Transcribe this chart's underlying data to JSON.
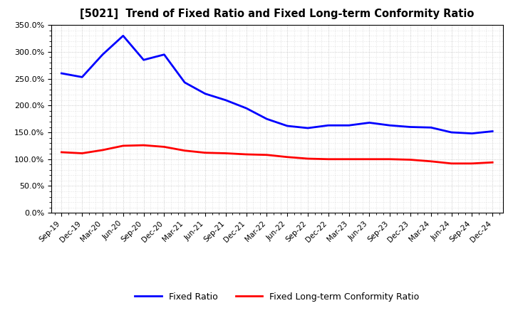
{
  "title": "[5021]  Trend of Fixed Ratio and Fixed Long-term Conformity Ratio",
  "x_labels": [
    "Sep-19",
    "Dec-19",
    "Mar-20",
    "Jun-20",
    "Sep-20",
    "Dec-20",
    "Mar-21",
    "Jun-21",
    "Sep-21",
    "Dec-21",
    "Mar-22",
    "Jun-22",
    "Sep-22",
    "Dec-22",
    "Mar-23",
    "Jun-23",
    "Sep-23",
    "Dec-23",
    "Mar-24",
    "Jun-24",
    "Sep-24",
    "Dec-24"
  ],
  "fixed_ratio": [
    260,
    253,
    295,
    330,
    285,
    295,
    243,
    222,
    210,
    195,
    175,
    162,
    158,
    163,
    163,
    168,
    163,
    160,
    159,
    150,
    148,
    152
  ],
  "fixed_lt_ratio": [
    113,
    111,
    117,
    125,
    126,
    123,
    116,
    112,
    111,
    109,
    108,
    104,
    101,
    100,
    100,
    100,
    100,
    99,
    96,
    92,
    92,
    94
  ],
  "ylim": [
    0,
    350
  ],
  "yticks": [
    0,
    50,
    100,
    150,
    200,
    250,
    300,
    350
  ],
  "blue_color": "#0000FF",
  "red_color": "#FF0000",
  "background_color": "#FFFFFF",
  "plot_bg_color": "#FFFFFF",
  "grid_color": "#AAAAAA",
  "legend_fixed_ratio": "Fixed Ratio",
  "legend_fixed_lt_ratio": "Fixed Long-term Conformity Ratio"
}
